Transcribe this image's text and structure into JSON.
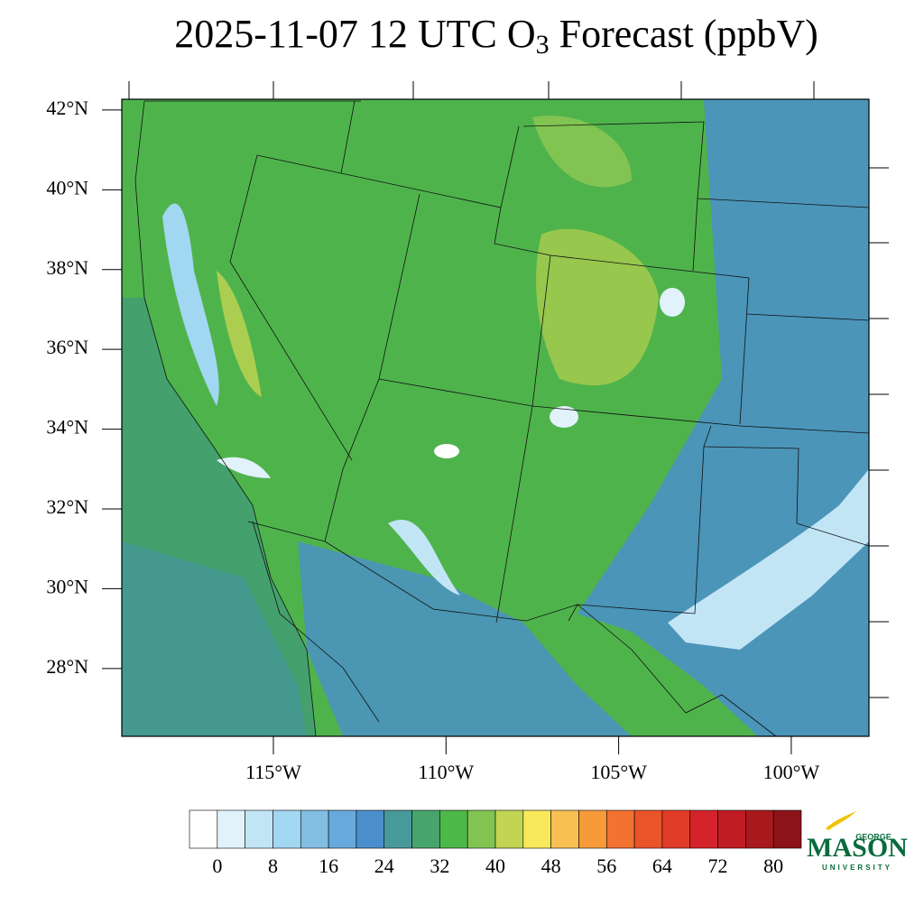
{
  "map": {
    "title": {
      "before": "2025-11-07 12 UTC O",
      "sub": "3",
      "after": " Forecast (ppbV)"
    },
    "latlim": [
      26.3,
      42.27
    ],
    "lonlim": [
      -119.39,
      -97.75
    ],
    "latticks": [
      {
        "value": 28,
        "label": "28°N"
      },
      {
        "value": 30,
        "label": "30°N"
      },
      {
        "value": 32,
        "label": "32°N"
      },
      {
        "value": 34,
        "label": "34°N"
      },
      {
        "value": 36,
        "label": "36°N"
      },
      {
        "value": 38,
        "label": "38°N"
      },
      {
        "value": 40,
        "label": "40°N"
      },
      {
        "value": 42,
        "label": "42°N"
      }
    ],
    "lonticks": [
      {
        "value": -115,
        "label": "115°W"
      },
      {
        "value": -110,
        "label": "110°W"
      },
      {
        "value": -105,
        "label": "105°W"
      },
      {
        "value": -100,
        "label": "100°W"
      }
    ],
    "colorbar": {
      "lim": [
        -4,
        84
      ],
      "ticks": [
        0,
        8,
        16,
        24,
        32,
        40,
        48,
        56,
        64,
        72,
        80
      ],
      "colors": [
        "#ffffff",
        "#e1f2fb",
        "#c2e5f6",
        "#a2d7f1",
        "#82bde2",
        "#67a9dc",
        "#4a8fcc",
        "#47999a",
        "#46a46c",
        "#4cb848",
        "#82c452",
        "#c2d552",
        "#f8e85a",
        "#f8c052",
        "#f79a3a",
        "#f27231",
        "#ea5429",
        "#e03c28",
        "#d4232a",
        "#c01c24",
        "#a8191e",
        "#8c1419"
      ]
    },
    "logo": {
      "top": "GEORGE",
      "main": "MASON",
      "bottom": "UNIVERSITY"
    }
  }
}
